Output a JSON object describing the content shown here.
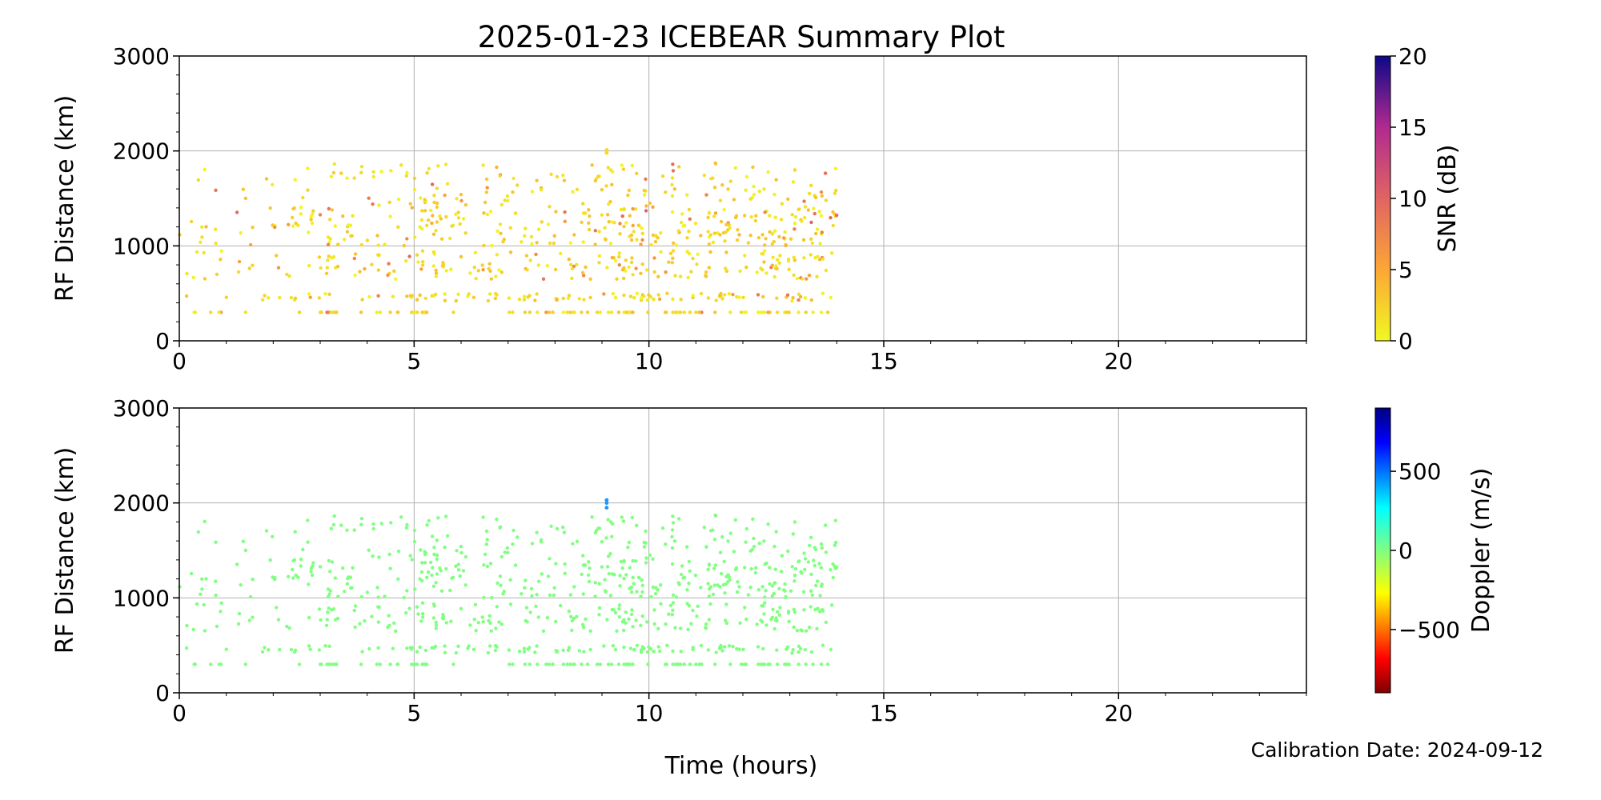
{
  "figure": {
    "title": "2025-01-23 ICEBEAR Summary Plot",
    "footer": "Calibration Date: 2024-09-12"
  },
  "chart_data": [
    {
      "type": "scatter",
      "ylabel": "RF Distance (km)",
      "xlabel": "",
      "xlim": [
        0,
        24
      ],
      "ylim": [
        0,
        3000
      ],
      "xticks": [
        "0",
        "5",
        "10",
        "15",
        "20"
      ],
      "yticks": [
        "0",
        "1000",
        "2000",
        "3000"
      ],
      "grid": true,
      "colorbar": {
        "label": "SNR (dB)",
        "range": [
          0,
          20
        ],
        "ticks": [
          "0",
          "5",
          "10",
          "15",
          "20"
        ],
        "colormap": "plasma_r"
      },
      "x_extent": [
        0,
        14
      ],
      "y_bands": [
        300,
        450,
        800,
        1200,
        1500
      ],
      "color_value_typical": 2
    },
    {
      "type": "scatter",
      "ylabel": "RF Distance (km)",
      "xlabel": "Time (hours)",
      "xlim": [
        0,
        24
      ],
      "ylim": [
        0,
        3000
      ],
      "xticks": [
        "0",
        "5",
        "10",
        "15",
        "20"
      ],
      "yticks": [
        "0",
        "1000",
        "2000",
        "3000"
      ],
      "grid": true,
      "colorbar": {
        "label": "Doppler (m/s)",
        "range": [
          -900,
          900
        ],
        "ticks": [
          "−500",
          "0",
          "500"
        ],
        "colormap": "jet_r"
      },
      "x_extent": [
        0,
        14
      ],
      "color_value_typical": 0,
      "outlier": {
        "x": 9.1,
        "y": [
          1950,
          2000,
          2030
        ],
        "color_value": 350
      }
    }
  ]
}
